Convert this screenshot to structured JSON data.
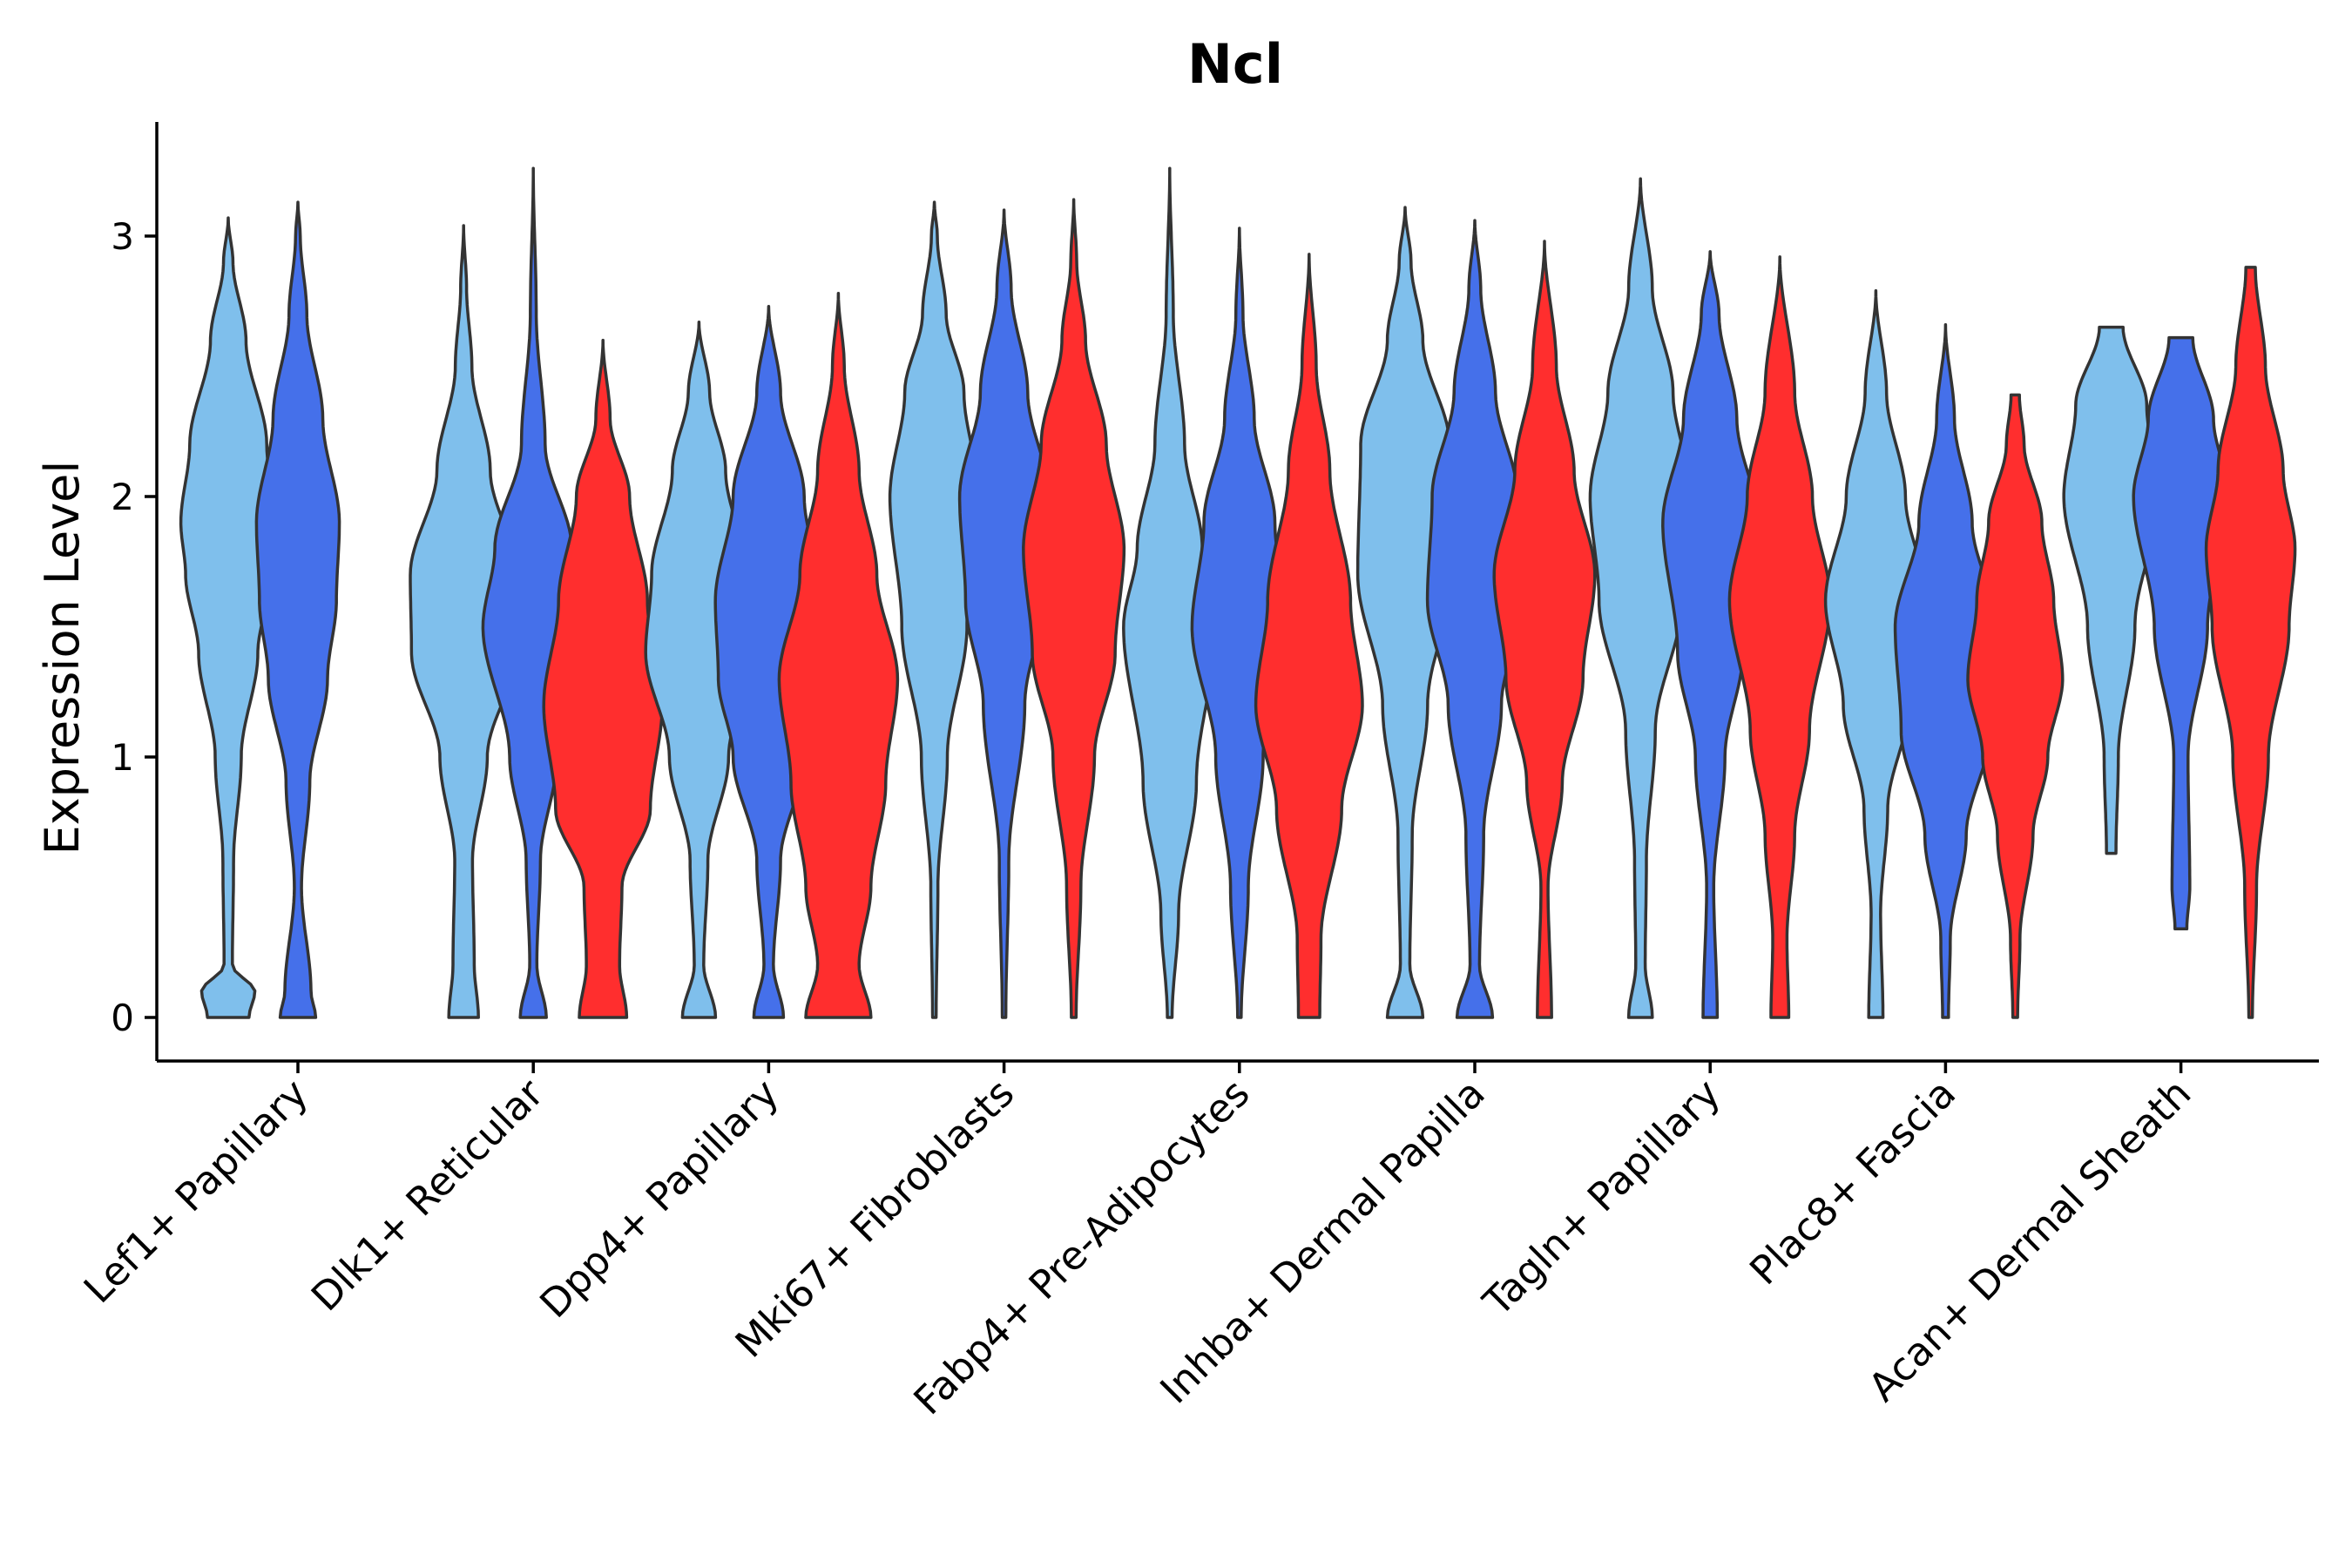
{
  "chart_data": {
    "type": "violin",
    "title": "Ncl",
    "xlabel": "",
    "ylabel": "Expression Level",
    "ylim": [
      -0.17,
      3.43
    ],
    "yticks": [
      0,
      1,
      2,
      3
    ],
    "categories": [
      "Lef1+ Papillary",
      "Dlk1+ Reticular",
      "Dpp4+ Papillary",
      "Mki67+ Fibroblasts",
      "Fabp4+ Pre-Adipocytes",
      "Inhba+ Dermal Papilla",
      "Tagln+ Papillary",
      "Plac8+ Fascia",
      "Acan+ Dermal Sheath"
    ],
    "groups": [
      {
        "name": "light-blue",
        "color": "#7fbfec"
      },
      {
        "name": "blue",
        "color": "#4570ea"
      },
      {
        "name": "red",
        "color": "#ff2e2e"
      }
    ],
    "violins": [
      {
        "category": "Lef1+ Papillary",
        "group": "light-blue",
        "max": 3.07,
        "min": 0,
        "profile": [
          [
            0,
            0.35
          ],
          [
            0.1,
            0.45
          ],
          [
            0.2,
            0.07
          ],
          [
            0.6,
            0.09
          ],
          [
            1.0,
            0.22
          ],
          [
            1.4,
            0.5
          ],
          [
            1.7,
            0.72
          ],
          [
            1.9,
            0.8
          ],
          [
            2.2,
            0.65
          ],
          [
            2.6,
            0.3
          ],
          [
            2.9,
            0.08
          ],
          [
            3.07,
            0
          ]
        ]
      },
      {
        "category": "Lef1+ Papillary",
        "group": "blue",
        "max": 3.13,
        "min": 0,
        "profile": [
          [
            0,
            0.3
          ],
          [
            0.1,
            0.22
          ],
          [
            0.5,
            0.06
          ],
          [
            0.9,
            0.2
          ],
          [
            1.3,
            0.5
          ],
          [
            1.6,
            0.65
          ],
          [
            1.9,
            0.7
          ],
          [
            2.3,
            0.42
          ],
          [
            2.7,
            0.15
          ],
          [
            3.0,
            0.04
          ],
          [
            3.13,
            0
          ]
        ]
      },
      {
        "category": "Dlk1+ Reticular",
        "group": "light-blue",
        "max": 3.04,
        "min": 0,
        "profile": [
          [
            0,
            0.25
          ],
          [
            0.2,
            0.18
          ],
          [
            0.6,
            0.15
          ],
          [
            1.0,
            0.4
          ],
          [
            1.4,
            0.88
          ],
          [
            1.7,
            0.9
          ],
          [
            2.1,
            0.45
          ],
          [
            2.5,
            0.14
          ],
          [
            2.8,
            0.05
          ],
          [
            3.04,
            0
          ]
        ]
      },
      {
        "category": "Dlk1+ Reticular",
        "group": "blue",
        "max": 3.26,
        "min": 0,
        "profile": [
          [
            0,
            0.22
          ],
          [
            0.2,
            0.06
          ],
          [
            0.6,
            0.12
          ],
          [
            1.0,
            0.4
          ],
          [
            1.5,
            0.85
          ],
          [
            1.8,
            0.65
          ],
          [
            2.2,
            0.2
          ],
          [
            2.7,
            0.05
          ],
          [
            3.26,
            0
          ]
        ]
      },
      {
        "category": "Dlk1+ Reticular",
        "group": "red",
        "max": 2.6,
        "min": 0,
        "profile": [
          [
            0,
            0.4
          ],
          [
            0.2,
            0.28
          ],
          [
            0.5,
            0.32
          ],
          [
            0.8,
            0.8
          ],
          [
            1.2,
            1.0
          ],
          [
            1.6,
            0.75
          ],
          [
            2.0,
            0.45
          ],
          [
            2.3,
            0.12
          ],
          [
            2.6,
            0
          ]
        ]
      },
      {
        "category": "Dpp4+ Papillary",
        "group": "light-blue",
        "max": 2.67,
        "min": 0,
        "profile": [
          [
            0,
            0.28
          ],
          [
            0.2,
            0.08
          ],
          [
            0.6,
            0.15
          ],
          [
            1.0,
            0.5
          ],
          [
            1.4,
            0.9
          ],
          [
            1.7,
            0.8
          ],
          [
            2.1,
            0.45
          ],
          [
            2.4,
            0.18
          ],
          [
            2.67,
            0
          ]
        ]
      },
      {
        "category": "Dpp4+ Papillary",
        "group": "blue",
        "max": 2.73,
        "min": 0,
        "profile": [
          [
            0,
            0.25
          ],
          [
            0.2,
            0.08
          ],
          [
            0.6,
            0.2
          ],
          [
            1.0,
            0.6
          ],
          [
            1.3,
            0.85
          ],
          [
            1.6,
            0.9
          ],
          [
            2.0,
            0.6
          ],
          [
            2.4,
            0.2
          ],
          [
            2.73,
            0
          ]
        ]
      },
      {
        "category": "Dpp4+ Papillary",
        "group": "red",
        "max": 2.78,
        "min": 0,
        "profile": [
          [
            0,
            0.55
          ],
          [
            0.2,
            0.35
          ],
          [
            0.5,
            0.55
          ],
          [
            0.9,
            0.8
          ],
          [
            1.3,
            1.0
          ],
          [
            1.7,
            0.65
          ],
          [
            2.1,
            0.35
          ],
          [
            2.5,
            0.1
          ],
          [
            2.78,
            0
          ]
        ]
      },
      {
        "category": "Mki67+ Fibroblasts",
        "group": "light-blue",
        "max": 3.13,
        "min": 0,
        "profile": [
          [
            0,
            0.03
          ],
          [
            0.5,
            0.06
          ],
          [
            1.0,
            0.22
          ],
          [
            1.5,
            0.55
          ],
          [
            2.0,
            0.75
          ],
          [
            2.4,
            0.5
          ],
          [
            2.7,
            0.2
          ],
          [
            3.0,
            0.05
          ],
          [
            3.13,
            0
          ]
        ]
      },
      {
        "category": "Mki67+ Fibroblasts",
        "group": "blue",
        "max": 3.1,
        "min": 0,
        "profile": [
          [
            0,
            0.03
          ],
          [
            0.6,
            0.08
          ],
          [
            1.2,
            0.35
          ],
          [
            1.6,
            0.65
          ],
          [
            2.0,
            0.75
          ],
          [
            2.4,
            0.4
          ],
          [
            2.8,
            0.12
          ],
          [
            3.1,
            0
          ]
        ]
      },
      {
        "category": "Mki67+ Fibroblasts",
        "group": "red",
        "max": 3.14,
        "min": 0,
        "profile": [
          [
            0,
            0.04
          ],
          [
            0.5,
            0.12
          ],
          [
            1.0,
            0.35
          ],
          [
            1.4,
            0.7
          ],
          [
            1.8,
            0.85
          ],
          [
            2.2,
            0.55
          ],
          [
            2.6,
            0.2
          ],
          [
            2.9,
            0.05
          ],
          [
            3.14,
            0
          ]
        ]
      },
      {
        "category": "Fabp4+ Pre-Adipocytes",
        "group": "light-blue",
        "max": 3.26,
        "min": 0,
        "profile": [
          [
            0,
            0.04
          ],
          [
            0.4,
            0.15
          ],
          [
            0.9,
            0.45
          ],
          [
            1.5,
            0.78
          ],
          [
            1.8,
            0.55
          ],
          [
            2.2,
            0.25
          ],
          [
            2.7,
            0.06
          ],
          [
            3.26,
            0
          ]
        ]
      },
      {
        "category": "Fabp4+ Pre-Adipocytes",
        "group": "blue",
        "max": 3.03,
        "min": 0,
        "profile": [
          [
            0,
            0.03
          ],
          [
            0.5,
            0.15
          ],
          [
            1.0,
            0.4
          ],
          [
            1.5,
            0.8
          ],
          [
            1.9,
            0.6
          ],
          [
            2.3,
            0.25
          ],
          [
            2.7,
            0.06
          ],
          [
            3.03,
            0
          ]
        ]
      },
      {
        "category": "Fabp4+ Pre-Adipocytes",
        "group": "red",
        "max": 2.93,
        "min": 0,
        "profile": [
          [
            0,
            0.18
          ],
          [
            0.3,
            0.2
          ],
          [
            0.8,
            0.55
          ],
          [
            1.2,
            0.9
          ],
          [
            1.6,
            0.7
          ],
          [
            2.1,
            0.35
          ],
          [
            2.5,
            0.12
          ],
          [
            2.93,
            0
          ]
        ]
      },
      {
        "category": "Inhba+ Dermal Papilla",
        "group": "light-blue",
        "max": 3.11,
        "min": 0,
        "profile": [
          [
            0,
            0.3
          ],
          [
            0.2,
            0.08
          ],
          [
            0.7,
            0.12
          ],
          [
            1.2,
            0.38
          ],
          [
            1.7,
            0.8
          ],
          [
            2.2,
            0.75
          ],
          [
            2.6,
            0.3
          ],
          [
            2.9,
            0.1
          ],
          [
            3.11,
            0
          ]
        ]
      },
      {
        "category": "Inhba+ Dermal Papilla",
        "group": "blue",
        "max": 3.06,
        "min": 0,
        "profile": [
          [
            0,
            0.3
          ],
          [
            0.2,
            0.08
          ],
          [
            0.7,
            0.15
          ],
          [
            1.2,
            0.45
          ],
          [
            1.6,
            0.8
          ],
          [
            2.0,
            0.72
          ],
          [
            2.4,
            0.35
          ],
          [
            2.8,
            0.1
          ],
          [
            3.06,
            0
          ]
        ]
      },
      {
        "category": "Inhba+ Dermal Papilla",
        "group": "red",
        "max": 2.98,
        "min": 0,
        "profile": [
          [
            0,
            0.12
          ],
          [
            0.5,
            0.06
          ],
          [
            0.9,
            0.3
          ],
          [
            1.3,
            0.65
          ],
          [
            1.7,
            0.85
          ],
          [
            2.1,
            0.5
          ],
          [
            2.5,
            0.2
          ],
          [
            2.98,
            0
          ]
        ]
      },
      {
        "category": "Tagln+ Papillary",
        "group": "light-blue",
        "max": 3.22,
        "min": 0,
        "profile": [
          [
            0,
            0.2
          ],
          [
            0.2,
            0.08
          ],
          [
            0.6,
            0.1
          ],
          [
            1.1,
            0.25
          ],
          [
            1.6,
            0.7
          ],
          [
            2.0,
            0.85
          ],
          [
            2.4,
            0.55
          ],
          [
            2.8,
            0.2
          ],
          [
            3.22,
            0
          ]
        ]
      },
      {
        "category": "Tagln+ Papillary",
        "group": "blue",
        "max": 2.94,
        "min": 0,
        "profile": [
          [
            0,
            0.12
          ],
          [
            0.5,
            0.06
          ],
          [
            1.0,
            0.25
          ],
          [
            1.4,
            0.55
          ],
          [
            1.9,
            0.8
          ],
          [
            2.3,
            0.45
          ],
          [
            2.7,
            0.15
          ],
          [
            2.94,
            0
          ]
        ]
      },
      {
        "category": "Tagln+ Papillary",
        "group": "red",
        "max": 2.92,
        "min": 0,
        "profile": [
          [
            0,
            0.15
          ],
          [
            0.3,
            0.12
          ],
          [
            0.7,
            0.25
          ],
          [
            1.1,
            0.5
          ],
          [
            1.6,
            0.85
          ],
          [
            2.0,
            0.55
          ],
          [
            2.4,
            0.25
          ],
          [
            2.92,
            0
          ]
        ]
      },
      {
        "category": "Plac8+ Fascia",
        "group": "light-blue",
        "max": 2.79,
        "min": 0,
        "profile": [
          [
            0,
            0.12
          ],
          [
            0.4,
            0.08
          ],
          [
            0.8,
            0.2
          ],
          [
            1.2,
            0.55
          ],
          [
            1.6,
            0.85
          ],
          [
            2.0,
            0.5
          ],
          [
            2.4,
            0.18
          ],
          [
            2.79,
            0
          ]
        ]
      },
      {
        "category": "Plac8+ Fascia",
        "group": "blue",
        "max": 2.66,
        "min": 0,
        "profile": [
          [
            0,
            0.05
          ],
          [
            0.3,
            0.08
          ],
          [
            0.7,
            0.35
          ],
          [
            1.1,
            0.75
          ],
          [
            1.5,
            0.85
          ],
          [
            1.9,
            0.45
          ],
          [
            2.3,
            0.15
          ],
          [
            2.66,
            0
          ]
        ]
      },
      {
        "category": "Plac8+ Fascia",
        "group": "red",
        "max": 2.39,
        "min": 0,
        "profile": [
          [
            0,
            0.04
          ],
          [
            0.3,
            0.08
          ],
          [
            0.7,
            0.3
          ],
          [
            1.0,
            0.55
          ],
          [
            1.3,
            0.8
          ],
          [
            1.6,
            0.65
          ],
          [
            1.9,
            0.45
          ],
          [
            2.2,
            0.15
          ],
          [
            2.39,
            0.07
          ]
        ]
      },
      {
        "category": "Acan+ Dermal Sheath",
        "group": "light-blue",
        "max": 2.65,
        "min": 0.63,
        "profile": [
          [
            0.63,
            0.08
          ],
          [
            1.0,
            0.12
          ],
          [
            1.5,
            0.4
          ],
          [
            2.0,
            0.8
          ],
          [
            2.35,
            0.6
          ],
          [
            2.65,
            0.2
          ]
        ]
      },
      {
        "category": "Acan+ Dermal Sheath",
        "group": "blue",
        "max": 2.61,
        "min": 0.34,
        "profile": [
          [
            0.34,
            0.1
          ],
          [
            0.5,
            0.15
          ],
          [
            1.0,
            0.12
          ],
          [
            1.5,
            0.45
          ],
          [
            2.0,
            0.8
          ],
          [
            2.3,
            0.55
          ],
          [
            2.61,
            0.2
          ]
        ]
      },
      {
        "category": "Acan+ Dermal Sheath",
        "group": "red",
        "max": 2.88,
        "min": 0,
        "profile": [
          [
            0,
            0.03
          ],
          [
            0.5,
            0.1
          ],
          [
            1.0,
            0.3
          ],
          [
            1.5,
            0.65
          ],
          [
            1.8,
            0.75
          ],
          [
            2.1,
            0.55
          ],
          [
            2.5,
            0.25
          ],
          [
            2.88,
            0.08
          ]
        ]
      }
    ]
  }
}
